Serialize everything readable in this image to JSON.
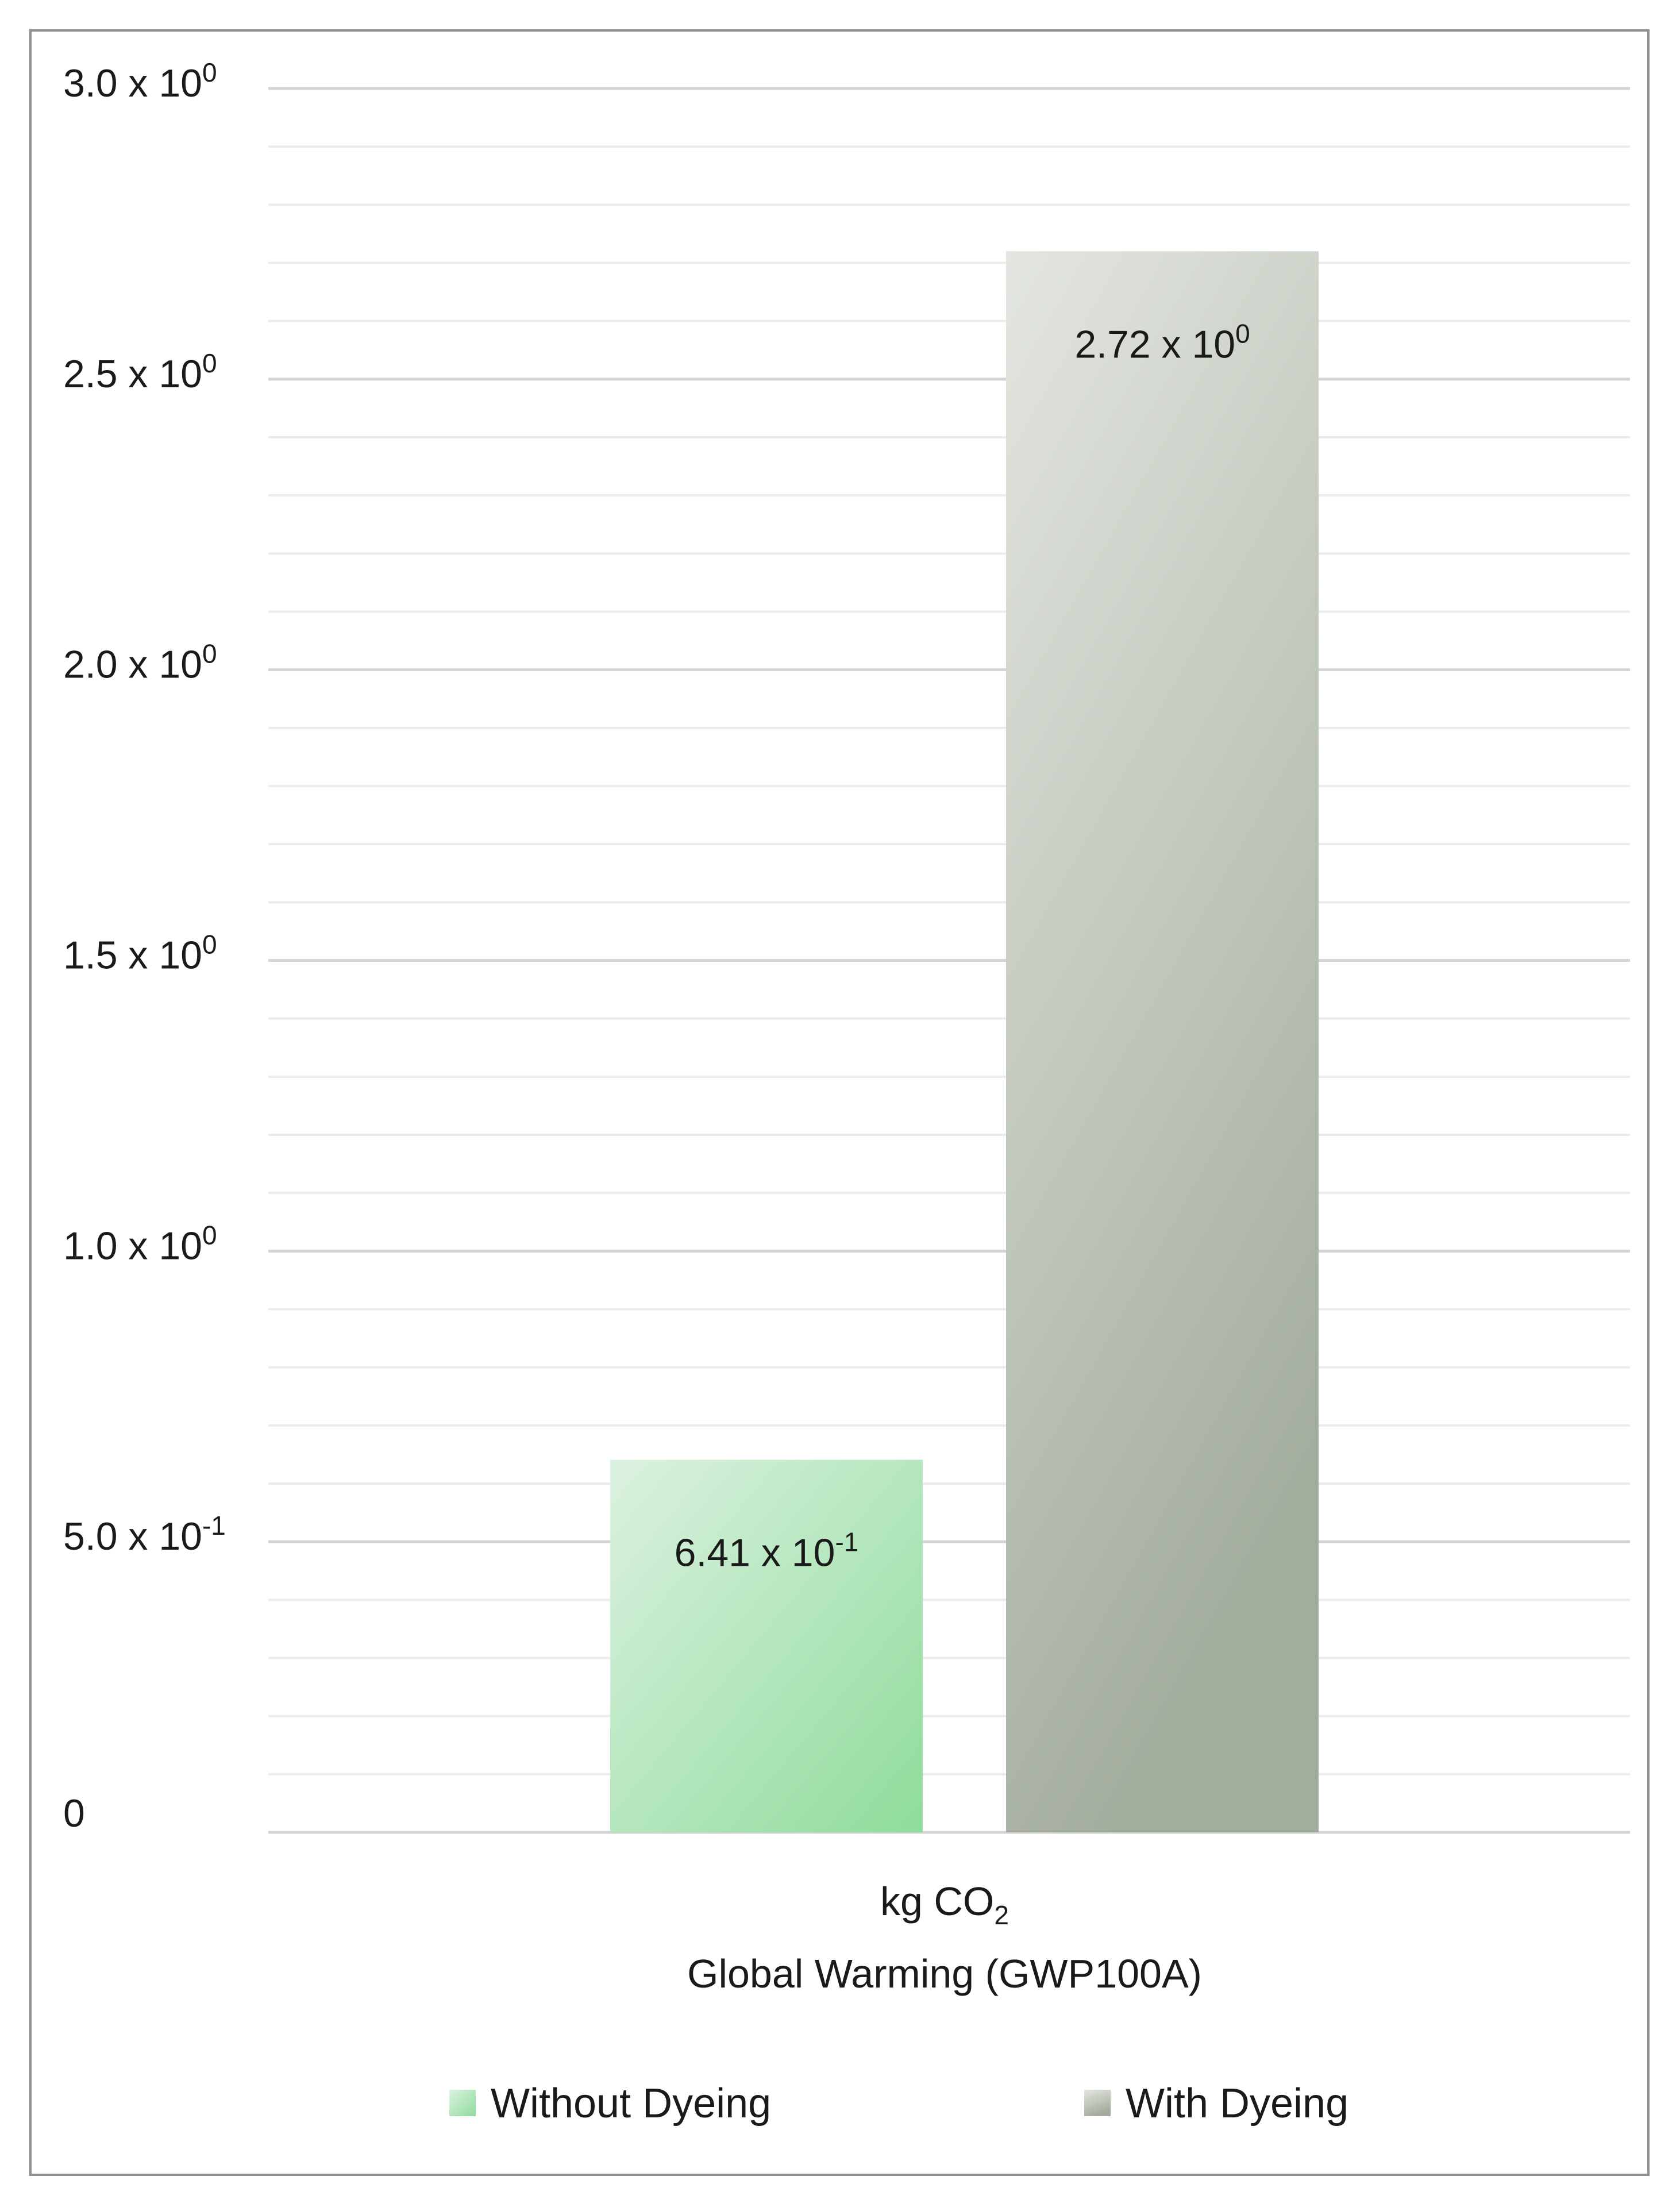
{
  "chart_data": {
    "type": "bar",
    "categories": [
      "kg CO2 Global Warming (GWP100A)"
    ],
    "category_label_lines": [
      {
        "text": "kg CO",
        "sub": "2"
      },
      {
        "text": "Global Warming (GWP100A)",
        "sub": ""
      }
    ],
    "series": [
      {
        "name": "Without Dyeing",
        "values": [
          0.641
        ],
        "value_label": {
          "mantissa": "6.41 x 10",
          "exp": "-1"
        }
      },
      {
        "name": "With Dyeing",
        "values": [
          2.72
        ],
        "value_label": {
          "mantissa": "2.72 x 10",
          "exp": "0"
        }
      }
    ],
    "yticks": [
      {
        "value": 0,
        "mantissa": "0",
        "exp": ""
      },
      {
        "value": 0.5,
        "mantissa": "5.0 x 10",
        "exp": "-1"
      },
      {
        "value": 1.0,
        "mantissa": "1.0 x 10",
        "exp": "0"
      },
      {
        "value": 1.5,
        "mantissa": "1.5 x 10",
        "exp": "0"
      },
      {
        "value": 2.0,
        "mantissa": "2.0 x 10",
        "exp": "0"
      },
      {
        "value": 2.5,
        "mantissa": "2.5 x 10",
        "exp": "0"
      },
      {
        "value": 3.0,
        "mantissa": "3.0 x 10",
        "exp": "0"
      }
    ],
    "ylim": [
      0,
      3.0
    ],
    "minor_gridline_step": 0.1,
    "grid": true,
    "legend_position": "bottom",
    "title": "",
    "xlabel": "",
    "ylabel": ""
  },
  "colors": {
    "without_dyeing_top": "#dcf1e0",
    "without_dyeing_bottom": "#8fdc9c",
    "with_dyeing_top": "#e3e6e0",
    "with_dyeing_bottom": "#a3ad9e",
    "gridline_major": "#d4d4d4",
    "gridline_minor": "#ececec",
    "frame_border": "#8f8f8f"
  }
}
